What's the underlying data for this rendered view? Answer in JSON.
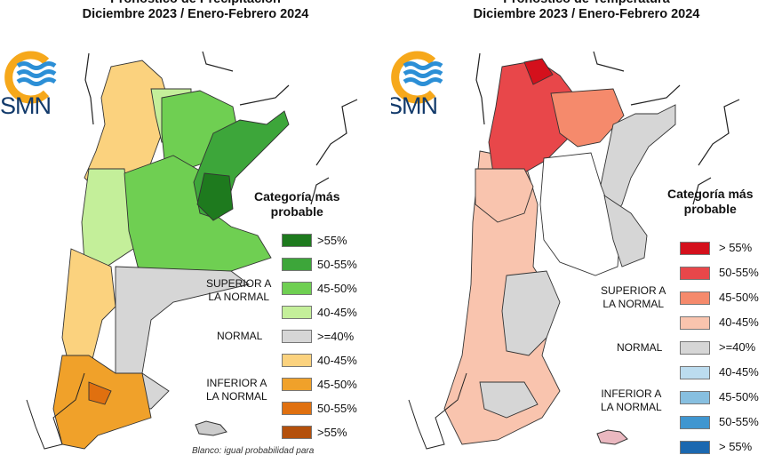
{
  "precip": {
    "title_line1": "Pronóstico de Precipitación",
    "title_line2": "Diciembre 2023 / Enero-Febrero 2024",
    "logo_text": "SMN",
    "legend_title_1": "Categoría más",
    "legend_title_2": "probable",
    "group_superior_1": "SUPERIOR A",
    "group_superior_2": "LA NORMAL",
    "group_normal": "NORMAL",
    "group_inferior_1": "INFERIOR A",
    "group_inferior_2": "LA NORMAL",
    "legend": [
      {
        "label": ">55%",
        "color": "#1e7a1e"
      },
      {
        "label": "50-55%",
        "color": "#3da63a"
      },
      {
        "label": "45-50%",
        "color": "#6fcf52"
      },
      {
        "label": "40-45%",
        "color": "#c4ef9a"
      },
      {
        "label": ">=40%",
        "color": "#d6d6d6"
      },
      {
        "label": "40-45%",
        "color": "#fbd27e"
      },
      {
        "label": "45-50%",
        "color": "#f0a12a"
      },
      {
        "label": "50-55%",
        "color": "#e0700f"
      },
      {
        "label": ">55%",
        "color": "#b4500c"
      }
    ],
    "note": "Blanco: igual probabilidad para"
  },
  "temp": {
    "title_line1": "Pronóstico de Temperatura",
    "title_line2": "Diciembre 2023 / Enero-Febrero 2024",
    "logo_text": "SMN",
    "legend_title_1": "Categoría más",
    "legend_title_2": "probable",
    "group_superior_1": "SUPERIOR A",
    "group_superior_2": "LA NORMAL",
    "group_normal": "NORMAL",
    "group_inferior_1": "INFERIOR A",
    "group_inferior_2": "LA NORMAL",
    "legend": [
      {
        "label": "> 55%",
        "color": "#d4101c"
      },
      {
        "label": "50-55%",
        "color": "#e8474a"
      },
      {
        "label": "45-50%",
        "color": "#f58a6c"
      },
      {
        "label": "40-45%",
        "color": "#f9c4ae"
      },
      {
        "label": ">=40%",
        "color": "#d6d6d6"
      },
      {
        "label": "40-45%",
        "color": "#bcdcef"
      },
      {
        "label": "45-50%",
        "color": "#87bfe0"
      },
      {
        "label": "50-55%",
        "color": "#3f96d0"
      },
      {
        "label": "> 55%",
        "color": "#1b68b0"
      }
    ]
  }
}
